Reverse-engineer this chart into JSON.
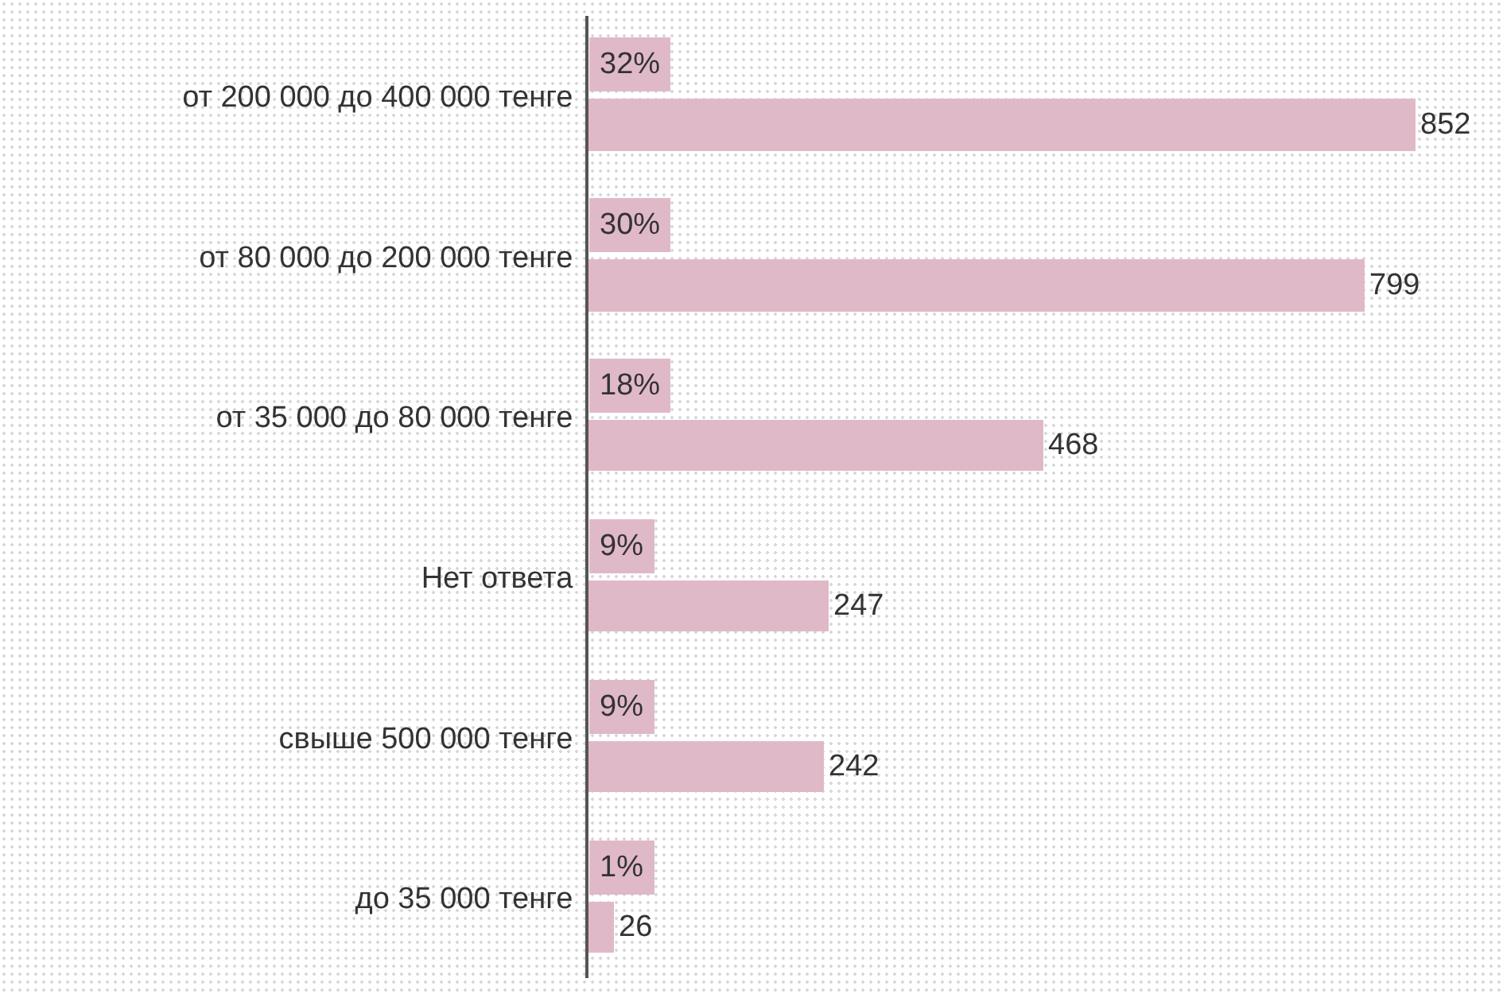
{
  "chart_data": {
    "type": "bar",
    "orientation": "horizontal",
    "categories": [
      "от 200 000 до 400 000 тенге",
      "от 80 000 до 200 000 тенге",
      "от 35 000 до 80 000 тенге",
      "Нет ответа",
      "свыше 500 000 тенге",
      "до 35 000 тенге"
    ],
    "values": [
      852,
      799,
      468,
      247,
      242,
      26
    ],
    "color": "#e0b9c8",
    "data_labels": true,
    "grid": false,
    "legend": false,
    "annotations": [
      {
        "text": "32%",
        "y": "от 200 000 до 400 000 тенге"
      },
      {
        "text": "30%",
        "y": "от 80 000 до 200 000 тенге"
      },
      {
        "text": "18%",
        "y": "от 35 000 до 80 000 тенге"
      },
      {
        "text": "9%",
        "y": "Нет ответа"
      },
      {
        "text": "9%",
        "y": "свыше 500 000 тенге"
      },
      {
        "text": "1%",
        "y": "до 35 000 тенге"
      }
    ]
  }
}
